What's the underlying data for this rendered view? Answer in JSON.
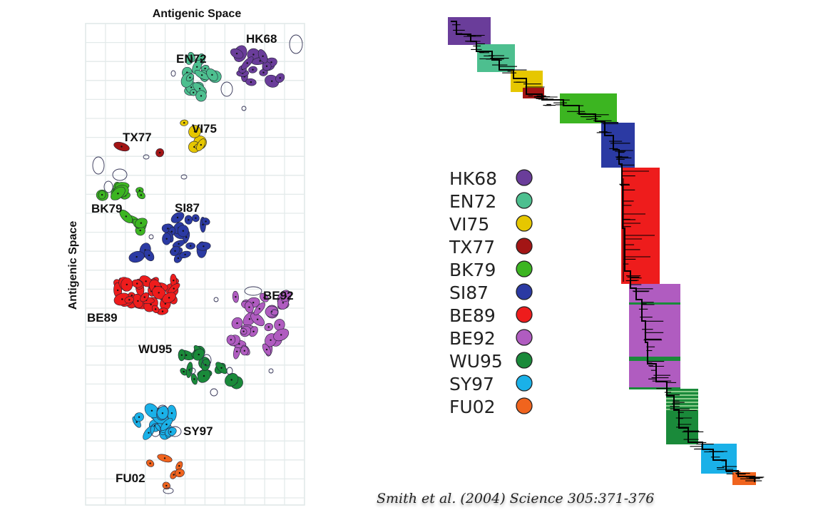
{
  "map": {
    "title": "Antigenic Space",
    "y_axis_label": "Antigenic Space"
  },
  "clusters": [
    {
      "id": "HK68",
      "color": "#6a3d9a"
    },
    {
      "id": "EN72",
      "color": "#4dbf8f"
    },
    {
      "id": "VI75",
      "color": "#e6c700"
    },
    {
      "id": "TX77",
      "color": "#a31515"
    },
    {
      "id": "BK79",
      "color": "#3cb521"
    },
    {
      "id": "SI87",
      "color": "#2b3aa3"
    },
    {
      "id": "BE89",
      "color": "#ee1c1c"
    },
    {
      "id": "BE92",
      "color": "#b05cc0"
    },
    {
      "id": "WU95",
      "color": "#1a8a3a"
    },
    {
      "id": "SY97",
      "color": "#1ab1e8"
    },
    {
      "id": "FU02",
      "color": "#f0641e"
    }
  ],
  "citation": "Smith et al. (2004) Science 305:371-376"
}
